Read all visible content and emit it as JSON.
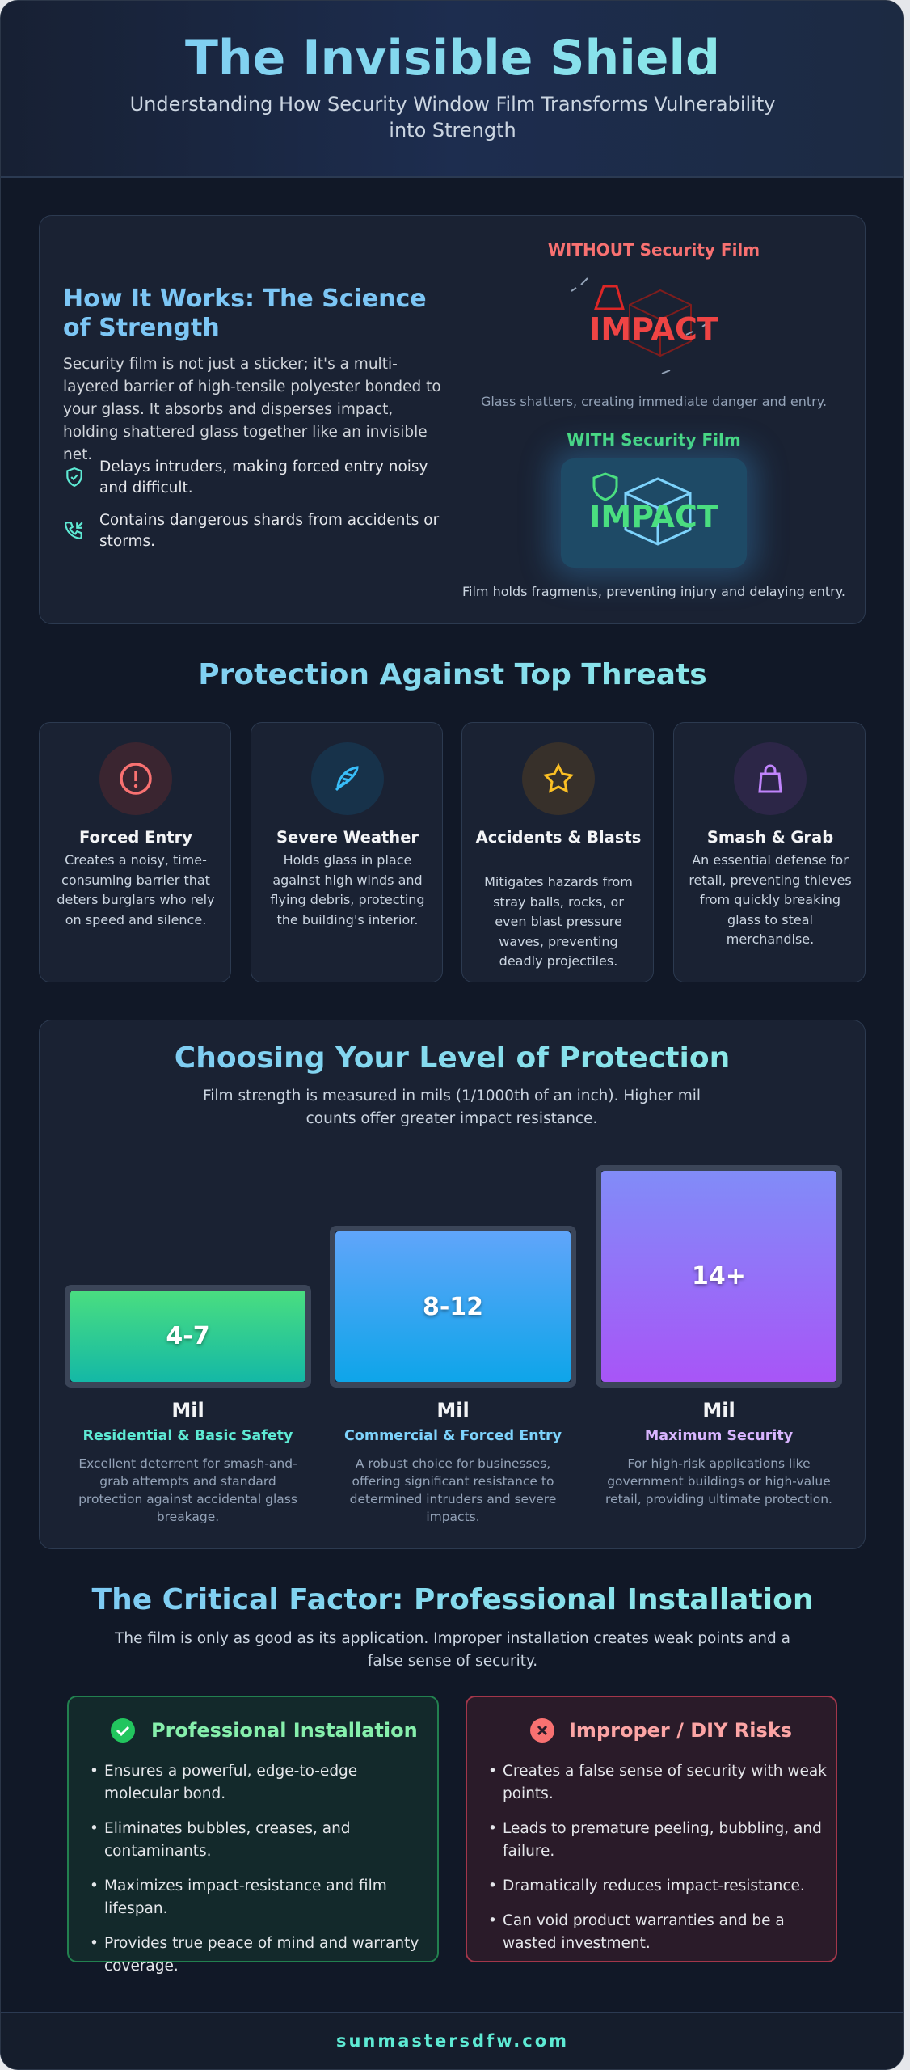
{
  "header": {
    "title": "The Invisible Shield",
    "subtitle": "Understanding How Security Window Film Transforms Vulnerability into Strength"
  },
  "how_it_works": {
    "title": "How It Works: The Science of Strength",
    "body": "Security film is not just a sticker; it's a multi-layered barrier of high-tensile polyester bonded to your glass. It absorbs and disperses impact, holding shattered glass together like an invisible net.",
    "points": [
      "Delays intruders, making forced entry noisy and difficult.",
      "Contains dangerous shards from accidents or storms."
    ],
    "without": {
      "label": "WITHOUT Security Film",
      "impact": "IMPACT",
      "caption": "Glass shatters, creating immediate danger and entry."
    },
    "with": {
      "label": "WITH Security Film",
      "impact": "IMPACT",
      "caption": "Film holds fragments, preventing injury and delaying entry."
    }
  },
  "threats": {
    "title": "Protection Against Top Threats",
    "cards": [
      {
        "title": "Forced Entry",
        "text": "Creates a noisy, time-consuming barrier that deters burglars who rely on speed and silence."
      },
      {
        "title": "Severe Weather",
        "text": "Holds glass in place against high winds and flying debris, protecting the building's interior."
      },
      {
        "title": "Accidents & Blasts",
        "text": "Mitigates hazards from stray balls, rocks, or even blast pressure waves, preventing deadly projectiles."
      },
      {
        "title": "Smash & Grab",
        "text": "An essential defense for retail, preventing thieves from quickly breaking glass to steal merchandise."
      }
    ]
  },
  "levels": {
    "title": "Choosing Your Level of Protection",
    "subtitle": "Film strength is measured in mils (1/1000th of an inch). Higher mil counts offer greater impact resistance.",
    "tiers": [
      {
        "range": "4-7",
        "unit": "Mil",
        "name": "Residential & Basic Safety",
        "text": "Excellent deterrent for smash-and-grab attempts and standard protection against accidental glass breakage."
      },
      {
        "range": "8-12",
        "unit": "Mil",
        "name": "Commercial & Forced Entry",
        "text": "A robust choice for businesses, offering significant resistance to determined intruders and severe impacts."
      },
      {
        "range": "14+",
        "unit": "Mil",
        "name": "Maximum Security",
        "text": "For high-risk applications like government buildings or high-value retail, providing ultimate protection."
      }
    ]
  },
  "installation": {
    "title": "The Critical Factor: Professional Installation",
    "subtitle": "The film is only as good as its application. Improper installation creates weak points and a false sense of security.",
    "pro": {
      "title": "Professional Installation",
      "items": [
        "Ensures a powerful, edge-to-edge molecular bond.",
        "Eliminates bubbles, creases, and contaminants.",
        "Maximizes impact-resistance and film lifespan.",
        "Provides true peace of mind and warranty coverage."
      ]
    },
    "diy": {
      "title": "Improper / DIY Risks",
      "items": [
        "Creates a false sense of security with weak points.",
        "Leads to premature peeling, bubbling, and failure.",
        "Dramatically reduces impact-resistance.",
        "Can void product warranties and be a wasted investment."
      ]
    }
  },
  "footer": "sunmastersdfw.com"
}
